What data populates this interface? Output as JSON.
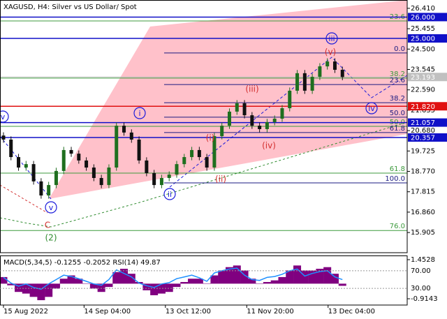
{
  "chart_data": {
    "type": "candlestick",
    "title": "XAGUSD, H4:  Silver vs US Dollar/ Spot",
    "open": [
      20.45,
      20.26,
      19.44,
      18.95,
      19.11,
      18.3,
      17.64,
      18.13,
      18.79,
      19.77,
      19.6,
      19.28,
      18.95,
      18.46,
      18.13,
      18.95,
      20.91,
      20.59,
      20.26,
      19.28,
      18.69,
      18.13,
      18.46,
      18.62,
      19.11,
      19.44,
      19.77,
      19.44,
      18.95,
      20.42,
      20.91,
      21.57,
      21.96,
      21.4,
      20.91,
      20.75,
      21.08,
      21.24,
      21.73,
      22.55,
      23.37,
      22.55,
      23.2,
      23.69,
      23.92,
      23.53
    ],
    "high": [
      20.6,
      20.41,
      19.59,
      19.26,
      19.26,
      18.45,
      18.28,
      18.94,
      19.92,
      19.92,
      19.75,
      19.43,
      19.1,
      18.61,
      19.1,
      21.06,
      21.06,
      20.74,
      20.41,
      19.43,
      18.84,
      18.61,
      18.77,
      19.26,
      19.59,
      19.92,
      19.92,
      19.59,
      20.57,
      21.06,
      21.72,
      22.11,
      22.11,
      21.55,
      21.06,
      21.23,
      21.39,
      21.88,
      22.7,
      23.52,
      23.52,
      23.35,
      23.84,
      24.07,
      24.07,
      23.68
    ],
    "low": [
      20.11,
      19.29,
      18.8,
      18.8,
      18.15,
      17.49,
      17.49,
      17.98,
      18.64,
      19.45,
      19.13,
      18.8,
      18.31,
      17.98,
      17.98,
      18.8,
      20.44,
      20.11,
      19.13,
      18.54,
      17.98,
      17.98,
      18.31,
      18.47,
      18.96,
      19.29,
      19.29,
      18.8,
      18.8,
      20.27,
      20.76,
      21.42,
      21.25,
      20.76,
      20.6,
      20.6,
      20.93,
      21.09,
      21.58,
      22.4,
      22.4,
      22.4,
      23.05,
      23.54,
      23.38,
      23.04
    ],
    "close": [
      20.26,
      19.44,
      18.95,
      19.11,
      18.3,
      17.64,
      18.13,
      18.79,
      19.77,
      19.6,
      19.28,
      18.95,
      18.46,
      18.13,
      18.95,
      20.91,
      20.59,
      20.26,
      19.28,
      18.69,
      18.13,
      18.46,
      18.62,
      19.11,
      19.44,
      19.77,
      19.44,
      18.95,
      20.42,
      20.91,
      21.57,
      21.96,
      21.4,
      20.91,
      20.75,
      21.08,
      21.24,
      21.73,
      22.55,
      23.37,
      22.55,
      23.2,
      23.69,
      23.92,
      23.53,
      23.19
    ],
    "up_color": "#1f6f1f",
    "down_color": "#111111",
    "xlim": [
      -0.46,
      53.6
    ],
    "xticks": [
      {
        "value": 0,
        "label": "15 Aug 2022"
      },
      {
        "value": 10.7,
        "label": "14 Sep 04:00"
      },
      {
        "value": 21.5,
        "label": "13 Oct 12:00"
      },
      {
        "value": 32.3,
        "label": "11 Nov 20:00"
      },
      {
        "value": 43.1,
        "label": "13 Dec 04:00"
      }
    ],
    "ylim": [
      14.96,
      26.8
    ],
    "yticks": [
      {
        "value": 26.41,
        "label": "26.410"
      },
      {
        "value": 25.455,
        "label": "25.455"
      },
      {
        "value": 24.5,
        "label": "24.500"
      },
      {
        "value": 23.545,
        "label": "23.545"
      },
      {
        "value": 22.59,
        "label": "22.590"
      },
      {
        "value": 21.635,
        "label": "21.635"
      },
      {
        "value": 20.68,
        "label": "20.680"
      },
      {
        "value": 19.725,
        "label": "19.725"
      },
      {
        "value": 18.77,
        "label": "18.770"
      },
      {
        "value": 17.815,
        "label": "17.815"
      },
      {
        "value": 16.86,
        "label": "16.860"
      },
      {
        "value": 15.905,
        "label": "15.905"
      }
    ],
    "price_lines": [
      {
        "value": 26,
        "label": "26.000",
        "color": "#1010c8"
      },
      {
        "value": 25,
        "label": "25.000",
        "color": "#1010c8"
      },
      {
        "value": 23.193,
        "label": "23.193",
        "color": "#c0c0c0"
      },
      {
        "value": 21.82,
        "label": "21.820",
        "color": "#e01010"
      },
      {
        "value": 21.057,
        "label": "21.057",
        "color": "#1010c8"
      },
      {
        "value": 20.357,
        "label": "20.357",
        "color": "#1010c8"
      }
    ],
    "fib_levels": [
      {
        "label": "23.6",
        "price": 25.82,
        "color": "#3c9a3c"
      },
      {
        "label": "0.0",
        "price": 24.32,
        "color": "#1a1a80"
      },
      {
        "label": "38.2",
        "price": 23.14,
        "color": "#3c9a3c"
      },
      {
        "label": "23.6",
        "price": 22.84,
        "color": "#1a1a80"
      },
      {
        "label": "38.2",
        "price": 21.99,
        "color": "#1a1a80"
      },
      {
        "label": "50.0",
        "price": 21.31,
        "color": "#1a1a80"
      },
      {
        "label": "50.0",
        "price": 20.88,
        "color": "#3c9a3c"
      },
      {
        "label": "61.8",
        "price": 20.59,
        "color": "#1a1a80"
      },
      {
        "label": "61.8",
        "price": 18.69,
        "color": "#3c9a3c"
      },
      {
        "label": "100.0",
        "price": 18.23,
        "color": "#1a1a80"
      },
      {
        "label": "76.0",
        "price": 16.0,
        "color": "#3c9a3c"
      }
    ],
    "wave_labels": [
      {
        "text": "v",
        "color": "#1a1adb",
        "circled": true
      },
      {
        "text": "v",
        "color": "#1a1adb",
        "circled": true
      },
      {
        "text": "i",
        "color": "#1a1adb",
        "circled": true
      },
      {
        "text": "ii",
        "color": "#1a1adb",
        "circled": true
      },
      {
        "text": "iii",
        "color": "#1a1adb",
        "circled": true
      },
      {
        "text": "iv",
        "color": "#1a1adb",
        "circled": true
      },
      {
        "text": "(i)",
        "color": "#d32f2f",
        "circled": false
      },
      {
        "text": "(ii)",
        "color": "#d32f2f",
        "circled": false
      },
      {
        "text": "(iii)",
        "color": "#d32f2f",
        "circled": false
      },
      {
        "text": "(iv)",
        "color": "#d32f2f",
        "circled": false
      },
      {
        "text": "(v)",
        "color": "#d32f2f",
        "circled": false
      },
      {
        "text": "C",
        "color": "#d32f2f",
        "circled": false
      },
      {
        "text": "(2)",
        "color": "#2e8b2e",
        "circled": false
      }
    ],
    "indicator": {
      "title": "MACD(5,34,5) -0.1255 -0.2052 RSI(14) 49.87",
      "macd": {
        "color": "#800080",
        "values": [
          0.4,
          -0.1,
          -0.5,
          -0.6,
          -0.8,
          -1.0,
          -0.8,
          -0.3,
          0.3,
          0.5,
          0.3,
          0.0,
          -0.3,
          -0.5,
          -0.2,
          0.7,
          0.9,
          0.6,
          0.1,
          -0.4,
          -0.7,
          -0.6,
          -0.5,
          -0.2,
          0.1,
          0.3,
          0.3,
          0.0,
          0.5,
          0.8,
          1.0,
          1.1,
          0.8,
          0.3,
          0.0,
          0.1,
          0.2,
          0.4,
          0.8,
          1.1,
          0.8,
          0.8,
          0.9,
          1.0,
          0.6,
          -0.13
        ]
      },
      "rsi": {
        "color": "#1e90ff",
        "values": [
          55,
          42,
          35,
          40,
          32,
          28,
          40,
          50,
          60,
          57,
          52,
          46,
          40,
          37,
          50,
          72,
          64,
          56,
          42,
          36,
          32,
          40,
          43,
          52,
          56,
          60,
          54,
          46,
          65,
          70,
          74,
          76,
          60,
          50,
          48,
          55,
          57,
          62,
          70,
          74,
          58,
          64,
          68,
          70,
          56,
          49.87
        ]
      },
      "ylim": [
        -1.294,
        1.706
      ],
      "yticks": [
        1.4528,
        -0.9143
      ],
      "y2lim": [
        -8,
        104.8
      ],
      "y2ticks": [
        {
          "value": 70,
          "label": "70.00"
        },
        {
          "value": 30,
          "label": "30.00"
        }
      ]
    }
  }
}
